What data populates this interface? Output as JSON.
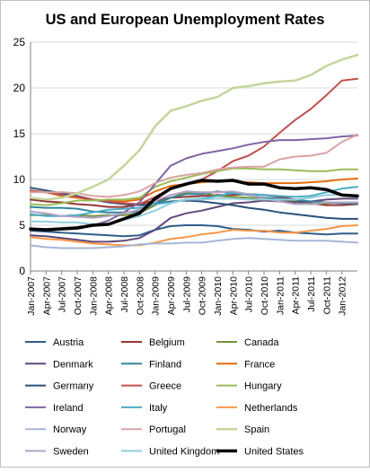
{
  "chart_data": {
    "type": "line",
    "title": "US and European Unemployment Rates",
    "xlabel": "",
    "ylabel": "",
    "ylim": [
      0,
      25
    ],
    "yticks": [
      0,
      5,
      10,
      15,
      20,
      25
    ],
    "grid": true,
    "legend_position": "bottom",
    "x": [
      "Jan-2007",
      "Apr-2007",
      "Jul-2007",
      "Oct-2007",
      "Jan-2008",
      "Apr-2008",
      "Jul-2008",
      "Oct-2008",
      "Jan-2009",
      "Apr-2009",
      "Jul-2009",
      "Oct-2009",
      "Jan-2010",
      "Apr-2010",
      "Jul-2010",
      "Oct-2010",
      "Jan-2011",
      "Apr-2011",
      "Jul-2011",
      "Oct-2011",
      "Jan-2012",
      "Mar-2012"
    ],
    "xtick_labels": [
      "Jan-2007",
      "Apr-2007",
      "Jul-2007",
      "Oct-2007",
      "Jan-2008",
      "Apr-2008",
      "Jul-2008",
      "Oct-2008",
      "Jan-2009",
      "Apr-2009",
      "Jul-2009",
      "Oct-2009",
      "Jan-2010",
      "Apr-2010",
      "Jul-2010",
      "Oct-2010",
      "Jan-2011",
      "Apr-2011",
      "Jul-2011",
      "Oct-2011",
      "Jan-2012"
    ],
    "series": [
      {
        "name": "Austria",
        "color": "#2e5f8a",
        "width": 2,
        "values": [
          4.4,
          4.3,
          4.2,
          4.1,
          4.0,
          3.9,
          3.8,
          3.9,
          4.5,
          4.9,
          5.0,
          5.0,
          4.9,
          4.6,
          4.5,
          4.3,
          4.4,
          4.2,
          4.1,
          4.0,
          4.1,
          4.1
        ]
      },
      {
        "name": "Belgium",
        "color": "#943634",
        "width": 2,
        "values": [
          7.8,
          7.6,
          7.5,
          7.3,
          7.2,
          7.0,
          7.0,
          7.3,
          7.7,
          8.0,
          8.1,
          8.2,
          8.3,
          8.3,
          8.4,
          8.3,
          8.1,
          7.8,
          7.4,
          7.2,
          7.2,
          7.3
        ]
      },
      {
        "name": "Canada",
        "color": "#76923c",
        "width": 2,
        "values": [
          6.1,
          6.1,
          6.0,
          6.1,
          6.0,
          6.1,
          6.1,
          6.3,
          7.2,
          8.0,
          8.6,
          8.6,
          8.2,
          8.1,
          8.0,
          7.9,
          7.8,
          7.6,
          7.3,
          7.4,
          7.5,
          7.4
        ]
      },
      {
        "name": "Denmark",
        "color": "#5f497a",
        "width": 2,
        "values": [
          3.9,
          3.8,
          3.6,
          3.4,
          3.2,
          3.2,
          3.3,
          3.6,
          4.5,
          5.8,
          6.3,
          6.6,
          7.0,
          7.4,
          7.5,
          7.7,
          7.6,
          7.5,
          7.6,
          7.8,
          7.9,
          7.9
        ]
      },
      {
        "name": "Finland",
        "color": "#31859c",
        "width": 2,
        "values": [
          7.0,
          6.9,
          6.9,
          6.8,
          6.5,
          6.4,
          6.4,
          6.5,
          7.4,
          8.0,
          8.4,
          8.4,
          8.7,
          8.5,
          8.3,
          8.0,
          7.9,
          7.8,
          7.6,
          7.5,
          7.4,
          7.4
        ]
      },
      {
        "name": "France",
        "color": "#e46c0a",
        "width": 2,
        "values": [
          8.7,
          8.6,
          8.2,
          8.0,
          7.8,
          7.7,
          7.6,
          7.8,
          8.7,
          9.3,
          9.5,
          9.7,
          9.8,
          9.8,
          9.7,
          9.6,
          9.6,
          9.6,
          9.7,
          9.8,
          10.0,
          10.1
        ]
      },
      {
        "name": "Germany",
        "color": "#2a5078",
        "width": 2,
        "values": [
          9.1,
          8.8,
          8.5,
          8.2,
          7.8,
          7.5,
          7.3,
          7.2,
          7.3,
          7.6,
          7.7,
          7.6,
          7.4,
          7.2,
          6.9,
          6.7,
          6.4,
          6.2,
          6.0,
          5.8,
          5.7,
          5.7
        ]
      },
      {
        "name": "Greece",
        "color": "#c0504d",
        "width": 2,
        "values": [
          8.8,
          8.6,
          8.3,
          8.1,
          7.8,
          7.6,
          7.4,
          7.3,
          8.1,
          9.0,
          9.4,
          10.0,
          10.9,
          12.0,
          12.6,
          13.6,
          15.1,
          16.5,
          17.7,
          19.2,
          20.8,
          21.0
        ]
      },
      {
        "name": "Hungary",
        "color": "#9bbb59",
        "width": 2,
        "values": [
          7.3,
          7.2,
          7.4,
          7.7,
          7.7,
          7.8,
          7.8,
          8.0,
          9.2,
          9.8,
          10.2,
          10.6,
          10.9,
          11.2,
          11.2,
          11.1,
          11.1,
          11.0,
          10.9,
          10.9,
          11.1,
          11.1
        ]
      },
      {
        "name": "Ireland",
        "color": "#8064a2",
        "width": 2,
        "values": [
          4.6,
          4.6,
          4.7,
          4.8,
          5.0,
          5.5,
          6.4,
          7.5,
          9.5,
          11.5,
          12.3,
          12.8,
          13.1,
          13.4,
          13.8,
          14.1,
          14.3,
          14.3,
          14.4,
          14.5,
          14.7,
          14.8
        ]
      },
      {
        "name": "Italy",
        "color": "#4bacc6",
        "width": 2,
        "values": [
          6.2,
          6.0,
          6.0,
          6.1,
          6.4,
          6.7,
          6.8,
          6.9,
          7.3,
          7.5,
          7.8,
          7.9,
          8.2,
          8.5,
          8.4,
          8.3,
          8.2,
          8.1,
          8.2,
          8.6,
          9.0,
          9.2
        ]
      },
      {
        "name": "Netherlands",
        "color": "#f79646",
        "width": 2,
        "values": [
          3.7,
          3.5,
          3.4,
          3.2,
          3.0,
          2.9,
          2.8,
          2.8,
          3.1,
          3.5,
          3.7,
          4.0,
          4.2,
          4.5,
          4.4,
          4.4,
          4.2,
          4.2,
          4.4,
          4.6,
          4.9,
          5.0
        ]
      },
      {
        "name": "Norway",
        "color": "#a5b6d6",
        "width": 2,
        "values": [
          2.8,
          2.6,
          2.5,
          2.5,
          2.5,
          2.6,
          2.7,
          2.9,
          3.0,
          3.0,
          3.1,
          3.1,
          3.3,
          3.5,
          3.6,
          3.5,
          3.4,
          3.3,
          3.3,
          3.3,
          3.2,
          3.1
        ]
      },
      {
        "name": "Portugal",
        "color": "#d9a3a2",
        "width": 2,
        "values": [
          8.6,
          8.6,
          8.6,
          8.5,
          8.2,
          8.1,
          8.3,
          8.7,
          9.6,
          10.2,
          10.5,
          10.7,
          11.1,
          11.3,
          11.4,
          11.4,
          12.2,
          12.5,
          12.6,
          12.9,
          14.1,
          14.9
        ]
      },
      {
        "name": "Spain",
        "color": "#c3d69b",
        "width": 2.5,
        "values": [
          8.0,
          7.8,
          8.0,
          8.5,
          9.2,
          10.0,
          11.5,
          13.2,
          15.8,
          17.5,
          18.0,
          18.6,
          19.0,
          20.0,
          20.2,
          20.5,
          20.7,
          20.8,
          21.4,
          22.4,
          23.1,
          23.6
        ]
      },
      {
        "name": "Sweden",
        "color": "#b3a2c7",
        "width": 2,
        "values": [
          6.5,
          6.3,
          6.0,
          5.9,
          5.8,
          6.0,
          6.3,
          6.7,
          7.7,
          8.3,
          8.7,
          8.6,
          8.6,
          8.7,
          8.4,
          7.9,
          7.6,
          7.3,
          7.3,
          7.5,
          7.5,
          7.5
        ]
      },
      {
        "name": "United Kingdom",
        "color": "#92cddc",
        "width": 2,
        "values": [
          5.4,
          5.4,
          5.3,
          5.3,
          5.1,
          5.2,
          5.6,
          6.0,
          6.6,
          7.4,
          7.8,
          7.8,
          7.9,
          7.9,
          7.8,
          7.8,
          7.8,
          7.8,
          8.0,
          8.3,
          8.3,
          8.1
        ]
      },
      {
        "name": "United States",
        "color": "#000000",
        "width": 3.5,
        "values": [
          4.6,
          4.5,
          4.6,
          4.7,
          5.0,
          5.1,
          5.7,
          6.3,
          7.9,
          9.0,
          9.5,
          9.9,
          9.8,
          9.9,
          9.5,
          9.5,
          9.1,
          9.0,
          9.1,
          8.9,
          8.3,
          8.2
        ]
      }
    ]
  }
}
